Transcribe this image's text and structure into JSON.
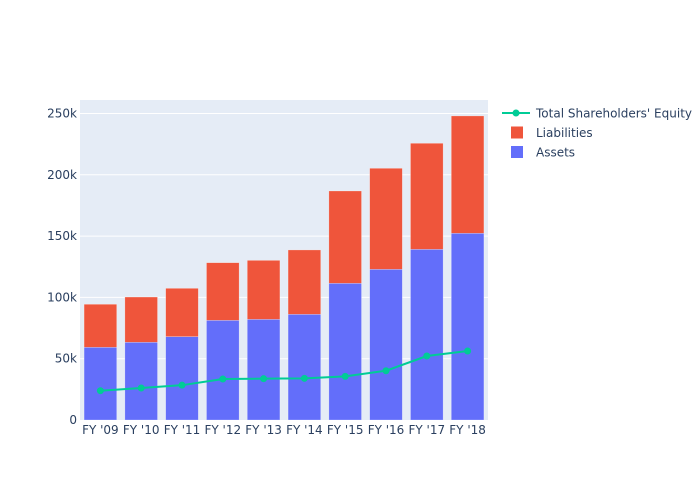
{
  "chart_data": {
    "type": "bar",
    "barmode": "stack",
    "title": "",
    "xlabel": "",
    "ylabel": "",
    "categories": [
      "FY '09",
      "FY '10",
      "FY '11",
      "FY '12",
      "FY '13",
      "FY '14",
      "FY '15",
      "FY '16",
      "FY '17",
      "FY '18"
    ],
    "ylim": [
      0,
      261000
    ],
    "yticks": [
      0,
      50000,
      100000,
      150000,
      200000,
      250000
    ],
    "ytick_labels": [
      "0",
      "50k",
      "100k",
      "150k",
      "200k",
      "250k"
    ],
    "grid": true,
    "legend_position": "top-right outside",
    "series": [
      {
        "name": "Assets",
        "type": "bar",
        "color": "#636efa",
        "values": [
          59300,
          63400,
          68000,
          81300,
          82100,
          86200,
          111500,
          122900,
          139200,
          152300
        ]
      },
      {
        "name": "Liabilities",
        "type": "bar",
        "color": "#EF553B",
        "values": [
          35100,
          36900,
          39400,
          47000,
          48100,
          52500,
          75300,
          82400,
          86500,
          95700
        ]
      },
      {
        "name": "Total Shareholders' Equity",
        "type": "line",
        "color": "#00cc96",
        "values": [
          23900,
          26100,
          28400,
          33400,
          33700,
          34000,
          35600,
          40200,
          52200,
          56300
        ]
      }
    ],
    "legend": [
      "Total Shareholders' Equity",
      "Liabilities",
      "Assets"
    ],
    "plot_bgcolor": "#E5ECF6"
  }
}
